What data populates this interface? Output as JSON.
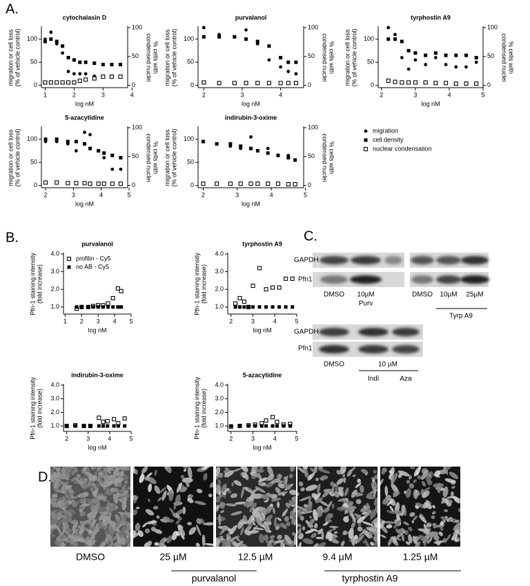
{
  "panel_labels": [
    "A.",
    "B.",
    "C.",
    "D."
  ],
  "chart_data": [
    {
      "type": "scatter",
      "title": "cytochalasin D",
      "xlabel": "log nM",
      "ylabel": [
        "migration or cell loss",
        "(% of vehicle control)"
      ],
      "y2label": [
        "% cells with",
        "condensed nuclei"
      ],
      "x": [
        1.0,
        1.2,
        1.4,
        1.6,
        1.8,
        2.0,
        2.2,
        2.4,
        2.7,
        3.0,
        3.3,
        3.6
      ],
      "series": [
        {
          "marker": "circle",
          "color": "#000000",
          "values": [
            100,
            115,
            90,
            70,
            30,
            25,
            25,
            25,
            20,
            20,
            18,
            18
          ]
        },
        {
          "marker": "square",
          "color": "#000000",
          "values": [
            95,
            100,
            95,
            85,
            60,
            55,
            50,
            50,
            48,
            45,
            45,
            45
          ]
        },
        {
          "marker": "open-square",
          "color": "#000000",
          "axis": "y2",
          "values": [
            5,
            5,
            5,
            5,
            5,
            5,
            8,
            10,
            12,
            15,
            15,
            15
          ]
        }
      ],
      "xlim": [
        0.87,
        3.85
      ],
      "xticks": [
        1,
        2,
        3,
        4
      ],
      "ylim": [
        -5,
        125
      ],
      "yticks": [
        0,
        50,
        100
      ],
      "y2lim": [
        -4,
        100
      ],
      "y2ticks": [
        0,
        50,
        100
      ]
    },
    {
      "type": "scatter",
      "title": "purvalanol",
      "xlabel": "log nM",
      "ylabel": [
        "migration or cell loss",
        "(% of vehicle control)"
      ],
      "y2label": [
        "% cells with",
        "condensed nuclei"
      ],
      "x": [
        2.0,
        2.4,
        2.8,
        3.1,
        3.4,
        3.7,
        4.0,
        4.2,
        4.4
      ],
      "series": [
        {
          "marker": "circle",
          "color": "#000000",
          "values": [
            125,
            110,
            105,
            120,
            90,
            55,
            40,
            30,
            25
          ]
        },
        {
          "marker": "square",
          "color": "#000000",
          "values": [
            105,
            105,
            105,
            100,
            95,
            85,
            60,
            50,
            50
          ]
        },
        {
          "marker": "open-square",
          "color": "#000000",
          "axis": "y2",
          "values": [
            5,
            4,
            4,
            4,
            4,
            4,
            4,
            4,
            4
          ]
        }
      ],
      "xlim": [
        1.85,
        4.6
      ],
      "xticks": [
        2,
        3,
        4
      ],
      "ylim": [
        -5,
        125
      ],
      "yticks": [
        0,
        50,
        100
      ],
      "y2lim": [
        -4,
        100
      ],
      "y2ticks": [
        0,
        50,
        100
      ]
    },
    {
      "type": "scatter",
      "title": "tyrphostin A9",
      "xlabel": "log nM",
      "ylabel": [
        "migration or cell loss",
        "(% of vehicle control)"
      ],
      "y2label": [
        "% cells with",
        "condensed nuclei"
      ],
      "x": [
        2.2,
        2.4,
        2.6,
        2.8,
        3.0,
        3.3,
        3.6,
        3.9,
        4.2,
        4.5,
        4.8
      ],
      "series": [
        {
          "marker": "circle",
          "color": "#000000",
          "values": [
            125,
            110,
            60,
            35,
            55,
            45,
            60,
            45,
            40,
            40,
            50
          ]
        },
        {
          "marker": "square",
          "color": "#000000",
          "values": [
            100,
            100,
            95,
            75,
            70,
            65,
            70,
            65,
            65,
            65,
            60
          ]
        },
        {
          "marker": "open-square",
          "color": "#000000",
          "axis": "y2",
          "values": [
            8,
            6,
            5,
            5,
            5,
            5,
            4,
            4,
            3,
            3,
            3
          ]
        }
      ],
      "xlim": [
        1.9,
        5.0
      ],
      "xticks": [
        2,
        3,
        4,
        5
      ],
      "ylim": [
        -5,
        125
      ],
      "yticks": [
        0,
        50,
        100
      ],
      "y2lim": [
        -4,
        100
      ],
      "y2ticks": [
        0,
        50,
        100
      ]
    },
    {
      "type": "scatter",
      "title": "5-azacytidine",
      "xlabel": "log nM",
      "ylabel": [
        "migration or cell loss",
        "(% of vehicle control)"
      ],
      "y2label": [
        "% cells with",
        "condensed nuclei"
      ],
      "x": [
        2.0,
        2.4,
        2.8,
        3.1,
        3.4,
        3.6,
        3.9,
        4.1,
        4.4,
        4.7
      ],
      "series": [
        {
          "marker": "circle",
          "color": "#000000",
          "values": [
            95,
            95,
            90,
            75,
            115,
            110,
            75,
            60,
            35,
            35
          ]
        },
        {
          "marker": "square",
          "color": "#000000",
          "values": [
            100,
            100,
            95,
            95,
            90,
            80,
            75,
            70,
            65,
            60
          ]
        },
        {
          "marker": "open-square",
          "color": "#000000",
          "axis": "y2",
          "values": [
            5,
            5,
            4,
            4,
            4,
            3,
            3,
            3,
            3,
            3
          ]
        }
      ],
      "xlim": [
        1.85,
        4.95
      ],
      "xticks": [
        2,
        3,
        4,
        5
      ],
      "ylim": [
        -5,
        125
      ],
      "yticks": [
        0,
        50,
        100
      ],
      "y2lim": [
        -4,
        100
      ],
      "y2ticks": [
        0,
        50,
        100
      ]
    },
    {
      "type": "scatter",
      "title": "indirubin-3-oxime",
      "xlabel": "log nM",
      "ylabel": [
        "migration or cell loss",
        "(% of vehicle control)"
      ],
      "y2label": [
        "% cells with",
        "condensed nuclei"
      ],
      "x": [
        2.0,
        2.4,
        2.8,
        3.1,
        3.4,
        3.6,
        3.9,
        4.2,
        4.5,
        4.7
      ],
      "series": [
        {
          "name": "migration",
          "marker": "circle",
          "color": "#000000",
          "values": [
            95,
            90,
            85,
            80,
            105,
            75,
            80,
            65,
            65,
            55
          ]
        },
        {
          "name": "cell density",
          "marker": "square",
          "color": "#000000",
          "values": [
            95,
            90,
            90,
            85,
            80,
            75,
            70,
            65,
            60,
            55
          ]
        },
        {
          "name": "nuclear condensation",
          "marker": "open-square",
          "color": "#000000",
          "axis": "y2",
          "values": [
            3,
            3,
            3,
            3,
            3,
            3,
            3,
            3,
            2,
            2
          ]
        }
      ],
      "xlim": [
        1.85,
        4.95
      ],
      "xticks": [
        2,
        3,
        4,
        5
      ],
      "ylim": [
        -5,
        125
      ],
      "yticks": [
        0,
        50,
        100
      ],
      "y2lim": [
        -4,
        100
      ],
      "y2ticks": [
        0,
        50,
        100
      ]
    },
    {
      "type": "scatter",
      "title": "purvalanol",
      "xlabel": "log nM",
      "ylabel": [
        "Pfn-1 staining intensity",
        "(fold increase)"
      ],
      "x": [
        1.7,
        2.0,
        2.4,
        2.7,
        3.0,
        3.3,
        3.6,
        3.9,
        4.2,
        4.4
      ],
      "series": [
        {
          "name": "profilin - Cy5",
          "marker": "open-square",
          "color": "#000000",
          "values": [
            0.9,
            1.0,
            1.0,
            1.05,
            1.1,
            1.1,
            1.2,
            1.5,
            2.05,
            1.9
          ]
        },
        {
          "name": "no AB - Cy5",
          "marker": "square",
          "color": "#000000",
          "values": [
            1.0,
            1.0,
            1.0,
            1.0,
            1.0,
            1.0,
            1.0,
            1.0,
            1.0,
            1.0
          ]
        }
      ],
      "xlim": [
        0.9,
        5.0
      ],
      "xticks": [
        1,
        2,
        3,
        4,
        5
      ],
      "ylim": [
        0.6,
        4.0
      ],
      "yticks": [
        {
          "value": 1,
          "label": "1.0"
        },
        {
          "value": 2,
          "label": "2.0"
        },
        {
          "value": 3,
          "label": "3.0"
        },
        {
          "value": 4,
          "label": "4.0"
        }
      ]
    },
    {
      "type": "scatter",
      "title": "tyrphostin A9",
      "xlabel": "log nM",
      "ylabel": [
        "Pfn-1 staining intensity",
        "(fold increase)"
      ],
      "x": [
        2.2,
        2.4,
        2.6,
        2.8,
        3.0,
        3.3,
        3.6,
        3.9,
        4.2,
        4.5,
        4.8
      ],
      "series": [
        {
          "marker": "open-square",
          "color": "#000000",
          "values": [
            1.2,
            1.5,
            1.3,
            1.0,
            2.2,
            3.2,
            2.0,
            2.1,
            2.1,
            2.6,
            2.6
          ]
        },
        {
          "marker": "square",
          "color": "#000000",
          "values": [
            1.0,
            1.0,
            1.0,
            1.0,
            1.0,
            1.0,
            1.0,
            1.0,
            1.0,
            1.0,
            1.0
          ]
        }
      ],
      "xlim": [
        1.85,
        5.0
      ],
      "xticks": [
        2,
        3,
        4,
        5
      ],
      "ylim": [
        0.6,
        4.0
      ],
      "yticks": [
        {
          "value": 1,
          "label": "1.0"
        },
        {
          "value": 2,
          "label": "2.0"
        },
        {
          "value": 3,
          "label": "3.0"
        },
        {
          "value": 4,
          "label": "4.0"
        }
      ]
    },
    {
      "type": "scatter",
      "title": "indirubin-3-oxime",
      "xlabel": "log nM",
      "ylabel": [
        "Pfn-1 staining intensity",
        "(fold increase)"
      ],
      "x": [
        2.0,
        2.4,
        2.8,
        3.1,
        3.5,
        3.7,
        3.9,
        4.2,
        4.4,
        4.7
      ],
      "series": [
        {
          "marker": "open-square",
          "color": "#000000",
          "values": [
            1.0,
            1.05,
            1.0,
            1.0,
            1.6,
            1.3,
            1.35,
            1.5,
            1.2,
            1.55
          ]
        },
        {
          "marker": "square",
          "color": "#000000",
          "values": [
            1.0,
            1.0,
            1.0,
            1.0,
            1.0,
            1.0,
            1.0,
            1.0,
            1.0,
            1.0
          ]
        }
      ],
      "xlim": [
        1.85,
        5.0
      ],
      "xticks": [
        2,
        3,
        4,
        5
      ],
      "ylim": [
        0.6,
        4.0
      ],
      "yticks": [
        {
          "value": 1,
          "label": "1.0"
        },
        {
          "value": 2,
          "label": "2.0"
        },
        {
          "value": 3,
          "label": "3.0"
        },
        {
          "value": 4,
          "label": "4.0"
        }
      ]
    },
    {
      "type": "scatter",
      "title": "5-azacytidine",
      "xlabel": "log nM",
      "ylabel": [
        "Pfn-1 staining intensity",
        "(fold increase)"
      ],
      "x": [
        2.0,
        2.4,
        2.8,
        3.1,
        3.4,
        3.6,
        3.9,
        4.1,
        4.4,
        4.7
      ],
      "series": [
        {
          "marker": "open-square",
          "color": "#000000",
          "values": [
            0.95,
            1.0,
            1.05,
            1.1,
            1.2,
            1.4,
            1.65,
            1.3,
            1.1,
            1.15
          ]
        },
        {
          "marker": "square",
          "color": "#000000",
          "values": [
            1.0,
            1.0,
            1.0,
            1.0,
            1.0,
            1.0,
            1.0,
            1.0,
            1.0,
            1.0
          ]
        }
      ],
      "xlim": [
        1.85,
        5.0
      ],
      "xticks": [
        2,
        3,
        4,
        5
      ],
      "ylim": [
        0.6,
        4.0
      ],
      "yticks": [
        {
          "value": 1,
          "label": "1.0"
        },
        {
          "value": 2,
          "label": "2.0"
        },
        {
          "value": 3,
          "label": "3.0"
        },
        {
          "value": 4,
          "label": "4.0"
        }
      ]
    }
  ],
  "blots": [
    {
      "rows": [
        "GAPDH",
        "Pfn1"
      ],
      "lanes": [
        "DMSO",
        "10µM",
        "DMSO",
        "10µM",
        "25µM"
      ],
      "groups": [
        "Purv",
        "Tyrp A9"
      ]
    },
    {
      "rows": [
        "GAPDH",
        "Pfn1"
      ],
      "lanes": [
        "DMSO"
      ],
      "dose": "10 µM",
      "groups": [
        "Indi",
        "Aza"
      ]
    }
  ],
  "images": {
    "labels": [
      "DMSO",
      "25 µM",
      "12.5 µM",
      "9.4 µM",
      "1.25 µM"
    ],
    "groups": [
      "purvalanol",
      "tyrphostin A9"
    ]
  }
}
